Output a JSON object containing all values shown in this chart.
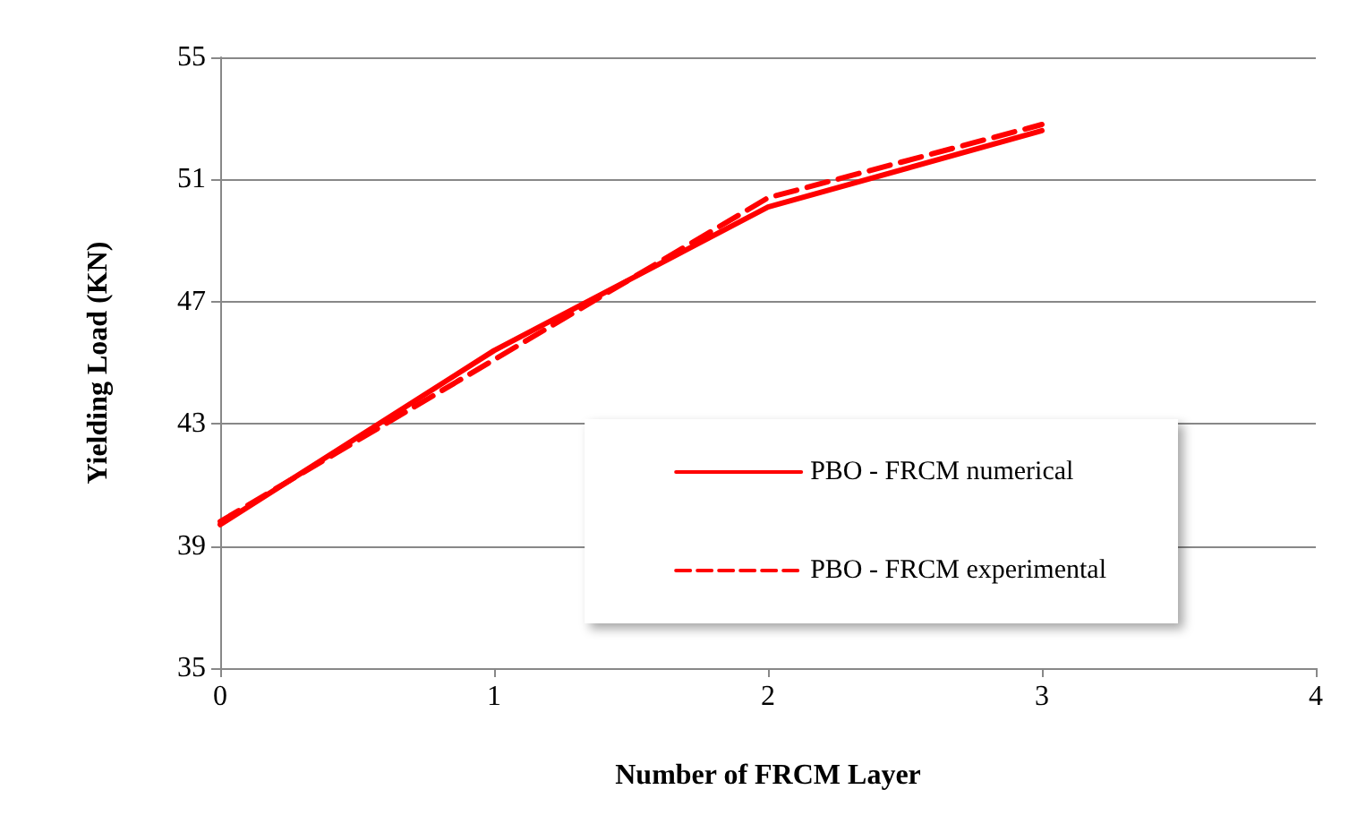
{
  "chart_data": {
    "type": "line",
    "xlabel": "Number of FRCM Layer",
    "ylabel": "Yielding Load (KN)",
    "x": [
      0,
      1,
      2,
      3
    ],
    "series": [
      {
        "name": "PBO - FRCM numerical",
        "color": "#ff0000",
        "values": [
          39.7,
          45.4,
          50.1,
          52.6
        ],
        "line_style": "solid"
      },
      {
        "name": "PBO - FRCM experimental",
        "color": "#ff0000",
        "values": [
          39.8,
          45.1,
          50.4,
          52.8
        ],
        "line_style": "dashed"
      }
    ],
    "xlim": [
      0,
      4
    ],
    "xticks": [
      0,
      1,
      2,
      3,
      4
    ],
    "ylim": [
      35,
      55
    ],
    "yticks": [
      35,
      39,
      43,
      47,
      51,
      55
    ],
    "grid": "y",
    "legend": "bottom right",
    "marker": "none"
  }
}
